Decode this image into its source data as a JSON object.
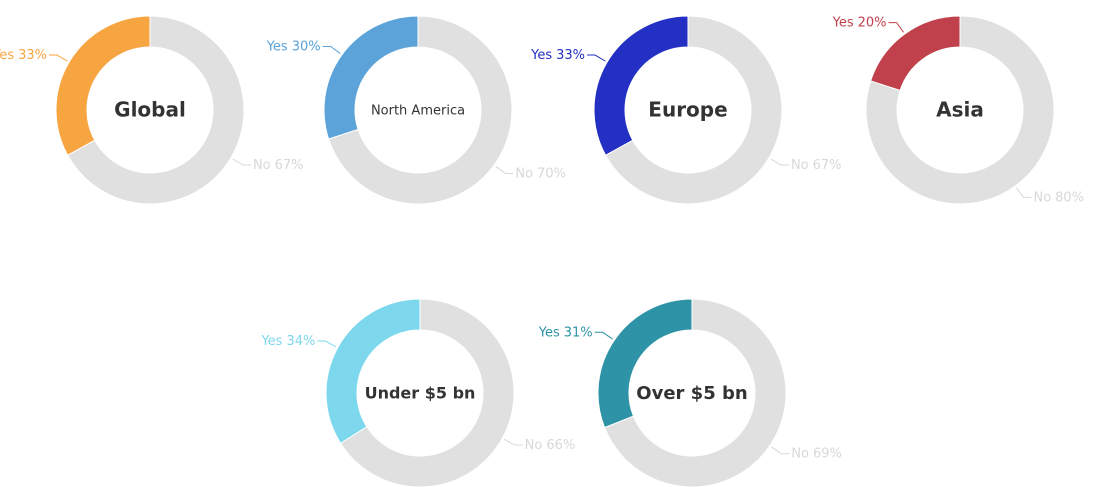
{
  "chart_data": [
    {
      "type": "pie",
      "title": "Global",
      "categories": [
        "Yes",
        "No"
      ],
      "values": [
        33,
        67
      ],
      "value_labels": [
        "33%",
        "67%"
      ],
      "colors": [
        "#f7a541",
        "#e0e0e0"
      ]
    },
    {
      "type": "pie",
      "title": "North America",
      "categories": [
        "Yes",
        "No"
      ],
      "values": [
        30,
        70
      ],
      "value_labels": [
        "30%",
        "70%"
      ],
      "colors": [
        "#5ba3d9",
        "#e0e0e0"
      ]
    },
    {
      "type": "pie",
      "title": "Europe",
      "categories": [
        "Yes",
        "No"
      ],
      "values": [
        33,
        67
      ],
      "value_labels": [
        "33%",
        "67%"
      ],
      "colors": [
        "#2430c4",
        "#e0e0e0"
      ]
    },
    {
      "type": "pie",
      "title": "Asia",
      "categories": [
        "Yes",
        "No"
      ],
      "values": [
        20,
        80
      ],
      "value_labels": [
        "20%",
        "80%"
      ],
      "colors": [
        "#c0414b",
        "#e0e0e0"
      ]
    },
    {
      "type": "pie",
      "title": "Under $5 bn",
      "categories": [
        "Yes",
        "No"
      ],
      "values": [
        34,
        66
      ],
      "value_labels": [
        "34%",
        "66%"
      ],
      "colors": [
        "#7dd8ee",
        "#e0e0e0"
      ]
    },
    {
      "type": "pie",
      "title": "Over $5 bn",
      "categories": [
        "Yes",
        "No"
      ],
      "values": [
        31,
        69
      ],
      "value_labels": [
        "31%",
        "69%"
      ],
      "colors": [
        "#2e93a6",
        "#e0e0e0"
      ]
    }
  ]
}
